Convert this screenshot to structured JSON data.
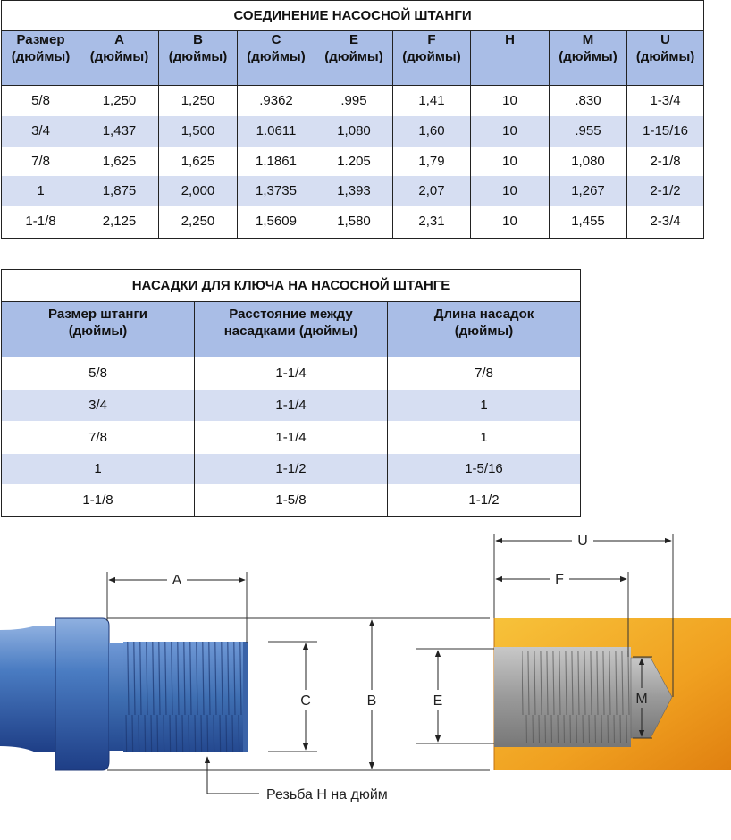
{
  "connection_table": {
    "title": "СОЕДИНЕНИЕ НАСОСНОЙ ШТАНГИ",
    "headers": [
      [
        "Размер",
        "(дюймы)"
      ],
      [
        "A",
        "(дюймы)"
      ],
      [
        "B",
        "(дюймы)"
      ],
      [
        "C",
        "(дюймы)"
      ],
      [
        "E",
        "(дюймы)"
      ],
      [
        "F",
        "(дюймы)"
      ],
      [
        "H",
        ""
      ],
      [
        "M",
        "(дюймы)"
      ],
      [
        "U",
        "(дюймы)"
      ]
    ],
    "rows": [
      [
        "5/8",
        "1,250",
        "1,250",
        ".9362",
        ".995",
        "1,41",
        "10",
        ".830",
        "1-3/4"
      ],
      [
        "3/4",
        "1,437",
        "1,500",
        "1.0611",
        "1,080",
        "1,60",
        "10",
        ".955",
        "1-15/16"
      ],
      [
        "7/8",
        "1,625",
        "1,625",
        "1.1861",
        "1.205",
        "1,79",
        "10",
        "1,080",
        "2-1/8"
      ],
      [
        "1",
        "1,875",
        "2,000",
        "1,3735",
        "1,393",
        "2,07",
        "10",
        "1,267",
        "2-1/2"
      ],
      [
        "1-1/8",
        "2,125",
        "2,250",
        "1,5609",
        "1,580",
        "2,31",
        "10",
        "1,455",
        "2-3/4"
      ]
    ]
  },
  "wrench_table": {
    "title": "НАСАДКИ ДЛЯ КЛЮЧА НА НАСОСНОЙ ШТАНГЕ",
    "headers": [
      [
        "Размер штанги",
        "(дюймы)"
      ],
      [
        "Расстояние между",
        "насадками (дюймы)"
      ],
      [
        "Длина насадок",
        "(дюймы)"
      ]
    ],
    "rows": [
      [
        "5/8",
        "1-1/4",
        "7/8"
      ],
      [
        "3/4",
        "1-1/4",
        "1"
      ],
      [
        "7/8",
        "1-1/4",
        "1"
      ],
      [
        "1",
        "1-1/2",
        "1-5/16"
      ],
      [
        "1-1/8",
        "1-5/8",
        "1-1/2"
      ]
    ]
  },
  "diagram": {
    "labels": {
      "A": "A",
      "B": "B",
      "C": "C",
      "E": "E",
      "F": "F",
      "U": "U",
      "M": "M",
      "thread": "Резьба H на дюйм"
    },
    "colors": {
      "pin_blue": "#3f6fb2",
      "box_orange": "#f0a020",
      "header_blue": "#a9bde6",
      "row_alt": "#d6def2"
    }
  }
}
